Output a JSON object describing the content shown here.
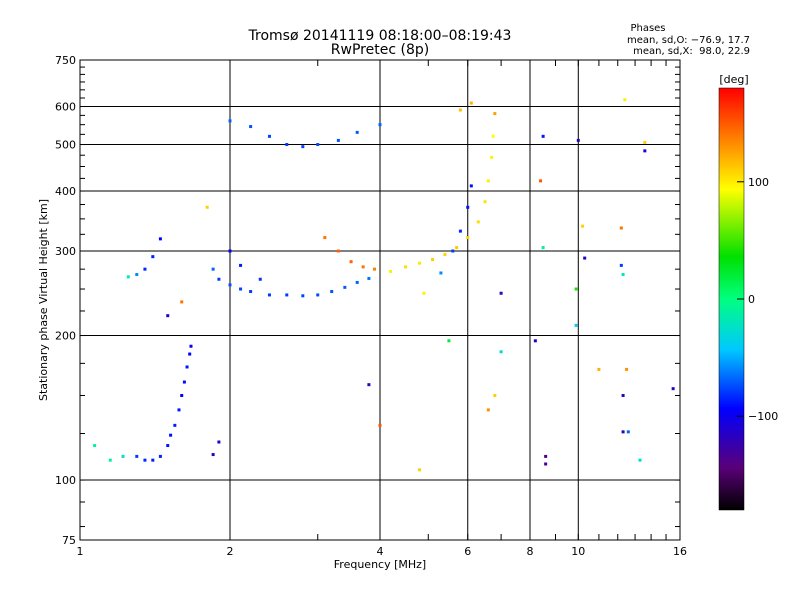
{
  "chart_data": {
    "type": "scatter",
    "title": "Tromsø 20141119 08:18:00–08:19:43",
    "subtitle": "RwPretec (8p)",
    "xlabel": "Frequency [MHz]",
    "ylabel": "Stationary phase Virtual Height [km]",
    "x_scale": "log",
    "y_scale": "log",
    "xlim": [
      1,
      16
    ],
    "ylim": [
      75,
      750
    ],
    "x_ticks": [
      1,
      2,
      4,
      6,
      8,
      10,
      16
    ],
    "x_tick_labels": [
      "1",
      "2",
      "4",
      "6",
      "8",
      "10",
      "16"
    ],
    "y_ticks": [
      75,
      100,
      200,
      300,
      400,
      500,
      600,
      750
    ],
    "y_tick_labels": [
      "75",
      "100",
      "200",
      "300",
      "400",
      "500",
      "600",
      "750"
    ],
    "grid": true,
    "phase_stats": {
      "heading": "Phases",
      "line_o": "mean, sd,O: −76.9, 17.7",
      "line_x": "mean, sd,X:  98.0, 22.9"
    },
    "colorbar": {
      "label": "[deg]",
      "range": [
        -180,
        180
      ],
      "ticks": [
        100,
        0,
        -100
      ],
      "tick_labels": [
        "100",
        "0",
        "−100"
      ]
    },
    "series": [
      {
        "values": [
          {
            "x": 1.3,
            "y": 112,
            "phase": -80
          },
          {
            "x": 1.35,
            "y": 110,
            "phase": -85
          },
          {
            "x": 1.4,
            "y": 110,
            "phase": -88
          },
          {
            "x": 1.45,
            "y": 112,
            "phase": -86
          },
          {
            "x": 1.5,
            "y": 118,
            "phase": -90
          },
          {
            "x": 1.52,
            "y": 124,
            "phase": -92
          },
          {
            "x": 1.55,
            "y": 130,
            "phase": -88
          },
          {
            "x": 1.58,
            "y": 140,
            "phase": -90
          },
          {
            "x": 1.6,
            "y": 150,
            "phase": -95
          },
          {
            "x": 1.62,
            "y": 160,
            "phase": -92
          },
          {
            "x": 1.64,
            "y": 172,
            "phase": -90
          },
          {
            "x": 1.66,
            "y": 183,
            "phase": -95
          },
          {
            "x": 1.67,
            "y": 190,
            "phase": -100
          },
          {
            "x": 1.22,
            "y": 112,
            "phase": -25
          },
          {
            "x": 1.15,
            "y": 110,
            "phase": -15
          },
          {
            "x": 1.07,
            "y": 118,
            "phase": -10
          },
          {
            "x": 1.25,
            "y": 265,
            "phase": -20
          },
          {
            "x": 1.3,
            "y": 268,
            "phase": -60
          },
          {
            "x": 1.35,
            "y": 275,
            "phase": -85
          },
          {
            "x": 1.4,
            "y": 292,
            "phase": -88
          },
          {
            "x": 1.45,
            "y": 318,
            "phase": -95
          },
          {
            "x": 1.85,
            "y": 275,
            "phase": -70
          },
          {
            "x": 1.9,
            "y": 262,
            "phase": -80
          },
          {
            "x": 2.0,
            "y": 255,
            "phase": -75
          },
          {
            "x": 2.1,
            "y": 250,
            "phase": -78
          },
          {
            "x": 2.2,
            "y": 247,
            "phase": -80
          },
          {
            "x": 2.4,
            "y": 243,
            "phase": -80
          },
          {
            "x": 2.6,
            "y": 243,
            "phase": -80
          },
          {
            "x": 2.8,
            "y": 242,
            "phase": -78
          },
          {
            "x": 3.0,
            "y": 243,
            "phase": -76
          },
          {
            "x": 3.2,
            "y": 247,
            "phase": -74
          },
          {
            "x": 3.4,
            "y": 252,
            "phase": -72
          },
          {
            "x": 3.6,
            "y": 258,
            "phase": -70
          },
          {
            "x": 3.8,
            "y": 263,
            "phase": -66
          },
          {
            "x": 2.0,
            "y": 300,
            "phase": -95
          },
          {
            "x": 2.1,
            "y": 280,
            "phase": -88
          },
          {
            "x": 2.3,
            "y": 262,
            "phase": -82
          },
          {
            "x": 2.0,
            "y": 560,
            "phase": -70
          },
          {
            "x": 2.2,
            "y": 545,
            "phase": -75
          },
          {
            "x": 2.4,
            "y": 520,
            "phase": -78
          },
          {
            "x": 2.6,
            "y": 500,
            "phase": -80
          },
          {
            "x": 2.8,
            "y": 495,
            "phase": -78
          },
          {
            "x": 3.0,
            "y": 500,
            "phase": -76
          },
          {
            "x": 3.3,
            "y": 510,
            "phase": -74
          },
          {
            "x": 3.6,
            "y": 530,
            "phase": -72
          },
          {
            "x": 4.0,
            "y": 550,
            "phase": -70
          },
          {
            "x": 4.2,
            "y": 272,
            "phase": 100
          },
          {
            "x": 4.5,
            "y": 278,
            "phase": 105
          },
          {
            "x": 4.8,
            "y": 283,
            "phase": 102
          },
          {
            "x": 5.1,
            "y": 288,
            "phase": 110
          },
          {
            "x": 5.4,
            "y": 295,
            "phase": 108
          },
          {
            "x": 5.7,
            "y": 305,
            "phase": 112
          },
          {
            "x": 6.0,
            "y": 320,
            "phase": 110
          },
          {
            "x": 6.3,
            "y": 345,
            "phase": 105
          },
          {
            "x": 6.5,
            "y": 380,
            "phase": 103
          },
          {
            "x": 6.6,
            "y": 420,
            "phase": 100
          },
          {
            "x": 6.7,
            "y": 470,
            "phase": 98
          },
          {
            "x": 6.75,
            "y": 520,
            "phase": 95
          },
          {
            "x": 6.8,
            "y": 580,
            "phase": 125
          },
          {
            "x": 3.1,
            "y": 320,
            "phase": 140
          },
          {
            "x": 3.3,
            "y": 300,
            "phase": 145
          },
          {
            "x": 3.5,
            "y": 285,
            "phase": 145
          },
          {
            "x": 3.7,
            "y": 278,
            "phase": 140
          },
          {
            "x": 3.9,
            "y": 275,
            "phase": 135
          },
          {
            "x": 5.6,
            "y": 300,
            "phase": -80
          },
          {
            "x": 5.8,
            "y": 330,
            "phase": -85
          },
          {
            "x": 6.0,
            "y": 370,
            "phase": -90
          },
          {
            "x": 6.1,
            "y": 410,
            "phase": -92
          },
          {
            "x": 5.3,
            "y": 270,
            "phase": -60
          },
          {
            "x": 5.8,
            "y": 590,
            "phase": 115
          },
          {
            "x": 6.1,
            "y": 610,
            "phase": 120
          },
          {
            "x": 8.5,
            "y": 520,
            "phase": -90
          },
          {
            "x": 10.0,
            "y": 510,
            "phase": -120
          },
          {
            "x": 13.6,
            "y": 485,
            "phase": -110
          },
          {
            "x": 13.6,
            "y": 505,
            "phase": 110
          },
          {
            "x": 12.4,
            "y": 620,
            "phase": 100
          },
          {
            "x": 8.6,
            "y": 108,
            "phase": -135
          },
          {
            "x": 8.6,
            "y": 112,
            "phase": -140
          },
          {
            "x": 13.3,
            "y": 110,
            "phase": -30
          },
          {
            "x": 11.0,
            "y": 170,
            "phase": 120
          },
          {
            "x": 12.5,
            "y": 170,
            "phase": 130
          },
          {
            "x": 12.3,
            "y": 150,
            "phase": -120
          },
          {
            "x": 12.3,
            "y": 126,
            "phase": -120
          },
          {
            "x": 12.6,
            "y": 126,
            "phase": -70
          },
          {
            "x": 15.5,
            "y": 155,
            "phase": -120
          },
          {
            "x": 1.5,
            "y": 220,
            "phase": -110
          },
          {
            "x": 1.6,
            "y": 235,
            "phase": 140
          },
          {
            "x": 1.9,
            "y": 120,
            "phase": -115
          },
          {
            "x": 1.85,
            "y": 113,
            "phase": -120
          },
          {
            "x": 1.8,
            "y": 370,
            "phase": 110
          },
          {
            "x": 3.8,
            "y": 158,
            "phase": -120
          },
          {
            "x": 4.0,
            "y": 130,
            "phase": 150
          },
          {
            "x": 4.8,
            "y": 105,
            "phase": 110
          },
          {
            "x": 5.5,
            "y": 195,
            "phase": 20
          },
          {
            "x": 7.0,
            "y": 245,
            "phase": -120
          },
          {
            "x": 10.2,
            "y": 338,
            "phase": 110
          },
          {
            "x": 10.3,
            "y": 290,
            "phase": -115
          },
          {
            "x": 12.2,
            "y": 280,
            "phase": -80
          },
          {
            "x": 12.3,
            "y": 268,
            "phase": -20
          },
          {
            "x": 8.4,
            "y": 420,
            "phase": 150
          },
          {
            "x": 8.5,
            "y": 305,
            "phase": -10
          },
          {
            "x": 9.9,
            "y": 210,
            "phase": -40
          },
          {
            "x": 9.9,
            "y": 250,
            "phase": 40
          },
          {
            "x": 12.2,
            "y": 335,
            "phase": 140
          },
          {
            "x": 8.2,
            "y": 195,
            "phase": -110
          },
          {
            "x": 7.0,
            "y": 185,
            "phase": -30
          },
          {
            "x": 6.8,
            "y": 150,
            "phase": 110
          },
          {
            "x": 6.6,
            "y": 140,
            "phase": 130
          },
          {
            "x": 4.9,
            "y": 245,
            "phase": 100
          }
        ]
      }
    ]
  },
  "colors": {
    "grid": "#000000",
    "frame": "#000000",
    "background": "#ffffff"
  }
}
